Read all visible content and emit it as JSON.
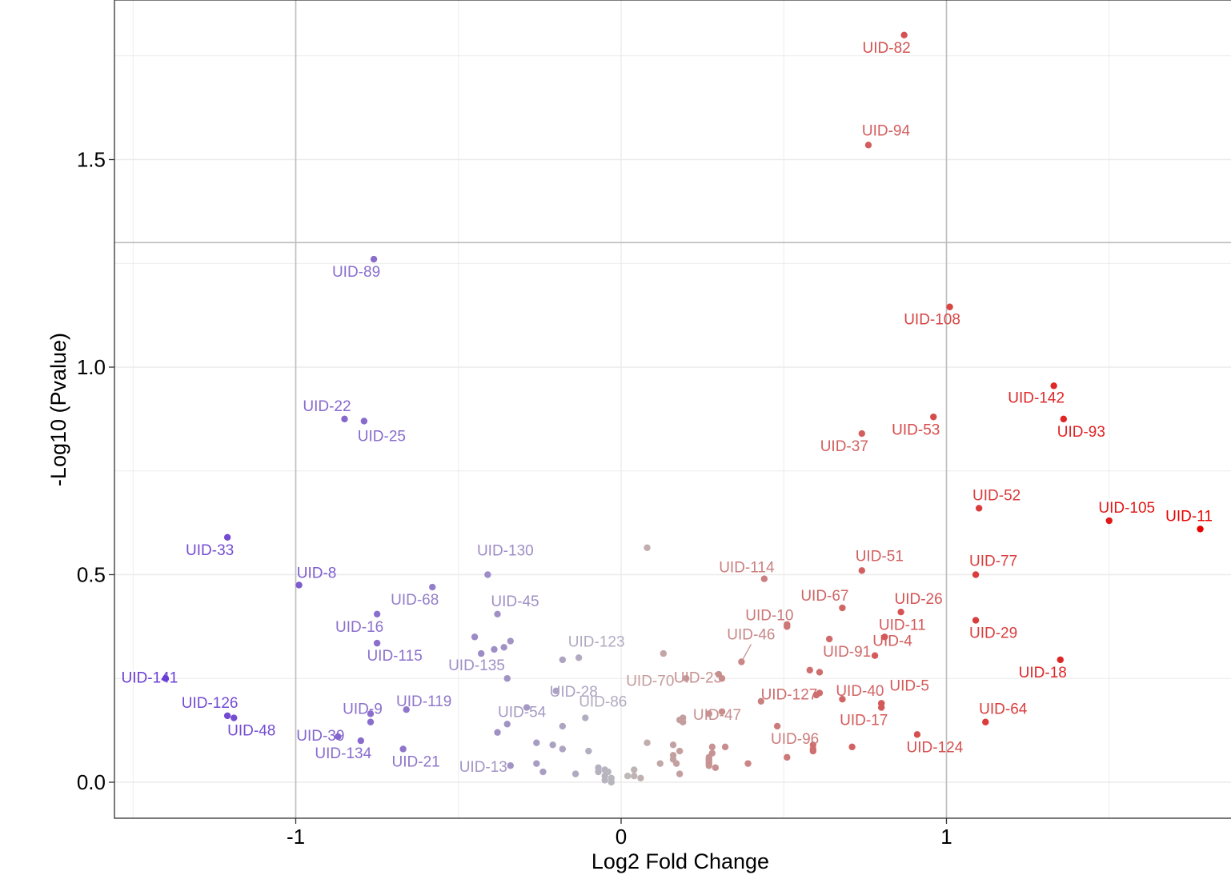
{
  "chart_data": {
    "type": "scatter",
    "title": "",
    "xlabel": "Log2 Fold Change",
    "ylabel": "-Log10 (Pvalue)",
    "xlim": [
      -1.5,
      1.9
    ],
    "ylim": [
      -0.085,
      1.895
    ],
    "x_ticks": [
      {
        "value": -1,
        "label": "-1"
      },
      {
        "value": 0,
        "label": "0"
      },
      {
        "value": 1,
        "label": "1"
      }
    ],
    "y_ticks": [
      {
        "value": 0,
        "label": "0.0"
      },
      {
        "value": 0.5,
        "label": "0.5"
      },
      {
        "value": 1,
        "label": "1.0"
      },
      {
        "value": 1.5,
        "label": "1.5"
      }
    ],
    "grid": true,
    "threshold_lines": {
      "x": [
        -1,
        1
      ],
      "y": [
        1.3
      ]
    },
    "colors": {
      "down": "#6a3dd6",
      "neutral": "#bdbdbd",
      "up": "#e80000",
      "threshold_line": "#bdbdbd",
      "grid": "#ebebeb"
    },
    "labeled_points": [
      {
        "label": "UID-82",
        "x": 0.87,
        "y": 1.8
      },
      {
        "label": "UID-94",
        "x": 0.76,
        "y": 1.535
      },
      {
        "label": "UID-89",
        "x": -0.76,
        "y": 1.26
      },
      {
        "label": "UID-108",
        "x": 1.01,
        "y": 1.145
      },
      {
        "label": "UID-142",
        "x": 1.33,
        "y": 0.955
      },
      {
        "label": "UID-22",
        "x": -0.85,
        "y": 0.875
      },
      {
        "label": "UID-25",
        "x": -0.79,
        "y": 0.87
      },
      {
        "label": "UID-53",
        "x": 0.96,
        "y": 0.88
      },
      {
        "label": "UID-93",
        "x": 1.36,
        "y": 0.875
      },
      {
        "label": "UID-37",
        "x": 0.74,
        "y": 0.84
      },
      {
        "label": "UID-52",
        "x": 1.1,
        "y": 0.66
      },
      {
        "label": "UID-105",
        "x": 1.5,
        "y": 0.63
      },
      {
        "label": "UID-11",
        "x": 1.78,
        "y": 0.61
      },
      {
        "label": "UID-33",
        "x": -1.21,
        "y": 0.59
      },
      {
        "label": "UID-51",
        "x": 0.74,
        "y": 0.51
      },
      {
        "label": "UID-77",
        "x": 1.09,
        "y": 0.5
      },
      {
        "label": "UID-130",
        "x": -0.41,
        "y": 0.5
      },
      {
        "label": "UID-114",
        "x": 0.44,
        "y": 0.49
      },
      {
        "label": "UID-8",
        "x": -0.99,
        "y": 0.475
      },
      {
        "label": "UID-68",
        "x": -0.58,
        "y": 0.47
      },
      {
        "label": "UID-67",
        "x": 0.68,
        "y": 0.42
      },
      {
        "label": "UID-26",
        "x": 0.86,
        "y": 0.41
      },
      {
        "label": "UID-45",
        "x": -0.38,
        "y": 0.405
      },
      {
        "label": "UID-16",
        "x": -0.75,
        "y": 0.405
      },
      {
        "label": "UID-29",
        "x": 1.09,
        "y": 0.39
      },
      {
        "label": "UID-10",
        "x": 0.51,
        "y": 0.375
      },
      {
        "label": "UID-11",
        "x": 0.81,
        "y": 0.35
      },
      {
        "label": "UID-115",
        "x": -0.75,
        "y": 0.335
      },
      {
        "label": "UID-4",
        "x": 0.78,
        "y": 0.305
      },
      {
        "label": "UID-91",
        "x": 0.64,
        "y": 0.345
      },
      {
        "label": "UID-46",
        "x": 0.37,
        "y": 0.29
      },
      {
        "label": "UID-123",
        "x": -0.13,
        "y": 0.3
      },
      {
        "label": "UID-135",
        "x": -0.39,
        "y": 0.32
      },
      {
        "label": "UID-18",
        "x": 1.35,
        "y": 0.295
      },
      {
        "label": "UID-23",
        "x": 0.31,
        "y": 0.25
      },
      {
        "label": "UID-28",
        "x": -0.2,
        "y": 0.22
      },
      {
        "label": "UID-70",
        "x": 0.2,
        "y": 0.25
      },
      {
        "label": "UID-127",
        "x": 0.61,
        "y": 0.215
      },
      {
        "label": "UID-40",
        "x": 0.68,
        "y": 0.2
      },
      {
        "label": "UID-141",
        "x": -1.4,
        "y": 0.25
      },
      {
        "label": "UID-5",
        "x": 0.8,
        "y": 0.19
      },
      {
        "label": "UID-47",
        "x": 0.31,
        "y": 0.17
      },
      {
        "label": "UID-9",
        "x": -0.77,
        "y": 0.165
      },
      {
        "label": "UID-119",
        "x": -0.66,
        "y": 0.175
      },
      {
        "label": "UID-54",
        "x": -0.29,
        "y": 0.18
      },
      {
        "label": "UID-86",
        "x": -0.11,
        "y": 0.155
      },
      {
        "label": "UID-126",
        "x": -1.21,
        "y": 0.16
      },
      {
        "label": "UID-48",
        "x": -1.19,
        "y": 0.155
      },
      {
        "label": "UID-96",
        "x": 0.48,
        "y": 0.135
      },
      {
        "label": "UID-17",
        "x": 0.8,
        "y": 0.18
      },
      {
        "label": "UID-64",
        "x": 1.12,
        "y": 0.145
      },
      {
        "label": "UID-39",
        "x": -0.87,
        "y": 0.11
      },
      {
        "label": "UID-124",
        "x": 0.91,
        "y": 0.115
      },
      {
        "label": "UID-13",
        "x": -0.34,
        "y": 0.04
      },
      {
        "label": "UID-134",
        "x": -0.8,
        "y": 0.1
      },
      {
        "label": "UID-21",
        "x": -0.67,
        "y": 0.08
      }
    ],
    "unlabeled_points": [
      {
        "x": 0.08,
        "y": 0.565
      },
      {
        "x": -0.45,
        "y": 0.35
      },
      {
        "x": -0.36,
        "y": 0.325
      },
      {
        "x": -0.34,
        "y": 0.34
      },
      {
        "x": -0.43,
        "y": 0.31
      },
      {
        "x": -0.18,
        "y": 0.295
      },
      {
        "x": 0.13,
        "y": 0.31
      },
      {
        "x": 0.51,
        "y": 0.38
      },
      {
        "x": -0.35,
        "y": 0.25
      },
      {
        "x": 0.3,
        "y": 0.26
      },
      {
        "x": 0.58,
        "y": 0.27
      },
      {
        "x": 0.61,
        "y": 0.265
      },
      {
        "x": 0.6,
        "y": 0.21
      },
      {
        "x": 0.43,
        "y": 0.195
      },
      {
        "x": 0.27,
        "y": 0.165
      },
      {
        "x": 0.8,
        "y": 0.19
      },
      {
        "x": -0.77,
        "y": 0.145
      },
      {
        "x": -0.38,
        "y": 0.12
      },
      {
        "x": 0.18,
        "y": 0.15
      },
      {
        "x": 0.19,
        "y": 0.155
      },
      {
        "x": 0.19,
        "y": 0.145
      },
      {
        "x": -0.35,
        "y": 0.14
      },
      {
        "x": -0.18,
        "y": 0.135
      },
      {
        "x": -0.26,
        "y": 0.095
      },
      {
        "x": -0.21,
        "y": 0.09
      },
      {
        "x": -0.18,
        "y": 0.08
      },
      {
        "x": -0.1,
        "y": 0.075
      },
      {
        "x": 0.08,
        "y": 0.095
      },
      {
        "x": 0.16,
        "y": 0.09
      },
      {
        "x": 0.18,
        "y": 0.075
      },
      {
        "x": 0.28,
        "y": 0.085
      },
      {
        "x": 0.32,
        "y": 0.085
      },
      {
        "x": 0.28,
        "y": 0.07
      },
      {
        "x": 0.51,
        "y": 0.06
      },
      {
        "x": 0.59,
        "y": 0.09
      },
      {
        "x": 0.59,
        "y": 0.08
      },
      {
        "x": 0.59,
        "y": 0.075
      },
      {
        "x": 0.71,
        "y": 0.085
      },
      {
        "x": -0.26,
        "y": 0.045
      },
      {
        "x": -0.24,
        "y": 0.025
      },
      {
        "x": -0.14,
        "y": 0.02
      },
      {
        "x": -0.07,
        "y": 0.035
      },
      {
        "x": -0.05,
        "y": 0.03
      },
      {
        "x": -0.04,
        "y": 0.025
      },
      {
        "x": -0.07,
        "y": 0.025
      },
      {
        "x": -0.05,
        "y": 0.015
      },
      {
        "x": -0.03,
        "y": 0.01
      },
      {
        "x": -0.05,
        "y": 0.005
      },
      {
        "x": -0.03,
        "y": 0.0
      },
      {
        "x": 0.02,
        "y": 0.015
      },
      {
        "x": 0.04,
        "y": 0.03
      },
      {
        "x": 0.04,
        "y": 0.015
      },
      {
        "x": 0.06,
        "y": 0.01
      },
      {
        "x": 0.12,
        "y": 0.045
      },
      {
        "x": 0.16,
        "y": 0.065
      },
      {
        "x": 0.16,
        "y": 0.055
      },
      {
        "x": 0.17,
        "y": 0.045
      },
      {
        "x": 0.18,
        "y": 0.02
      },
      {
        "x": 0.27,
        "y": 0.06
      },
      {
        "x": 0.27,
        "y": 0.055
      },
      {
        "x": 0.27,
        "y": 0.05
      },
      {
        "x": 0.27,
        "y": 0.045
      },
      {
        "x": 0.27,
        "y": 0.04
      },
      {
        "x": 0.29,
        "y": 0.035
      },
      {
        "x": 0.39,
        "y": 0.045
      }
    ]
  }
}
